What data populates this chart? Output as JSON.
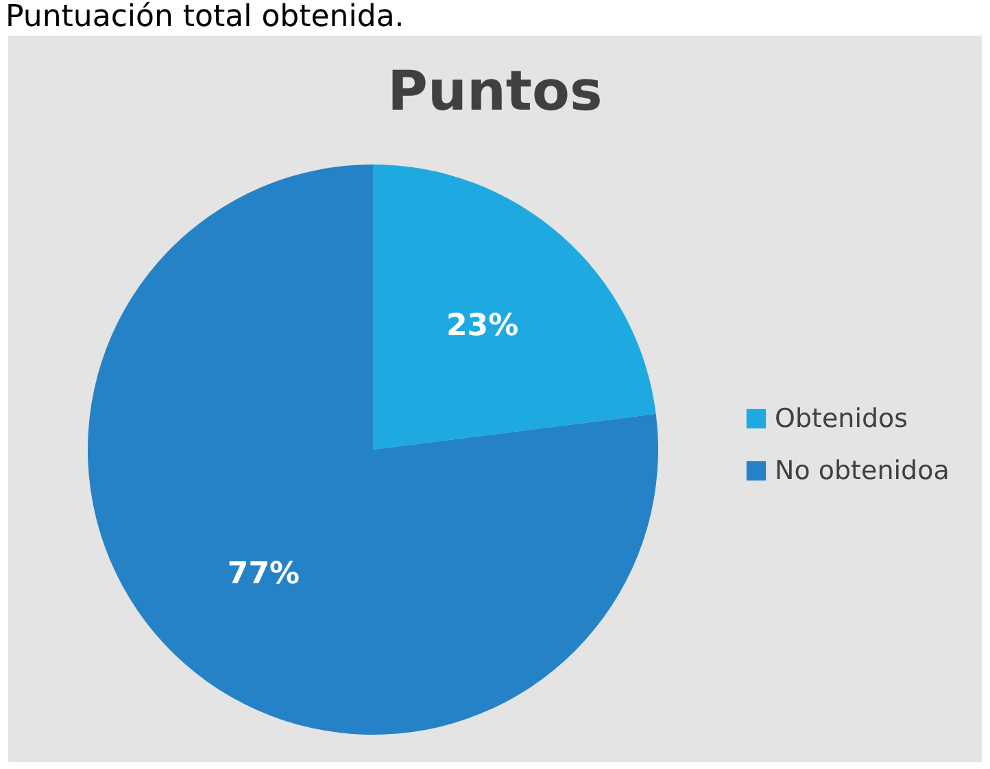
{
  "chart_data": {
    "type": "pie",
    "title": "Puntos",
    "annotations": [
      "Puntuación total obtenida."
    ],
    "categories": [
      "Obtenidos",
      "No obtenidoa"
    ],
    "values": [
      23,
      77
    ],
    "colors": [
      "#1ea9e1",
      "#2682c6"
    ],
    "value_labels": [
      "23%",
      "77%"
    ],
    "legend": "right"
  }
}
